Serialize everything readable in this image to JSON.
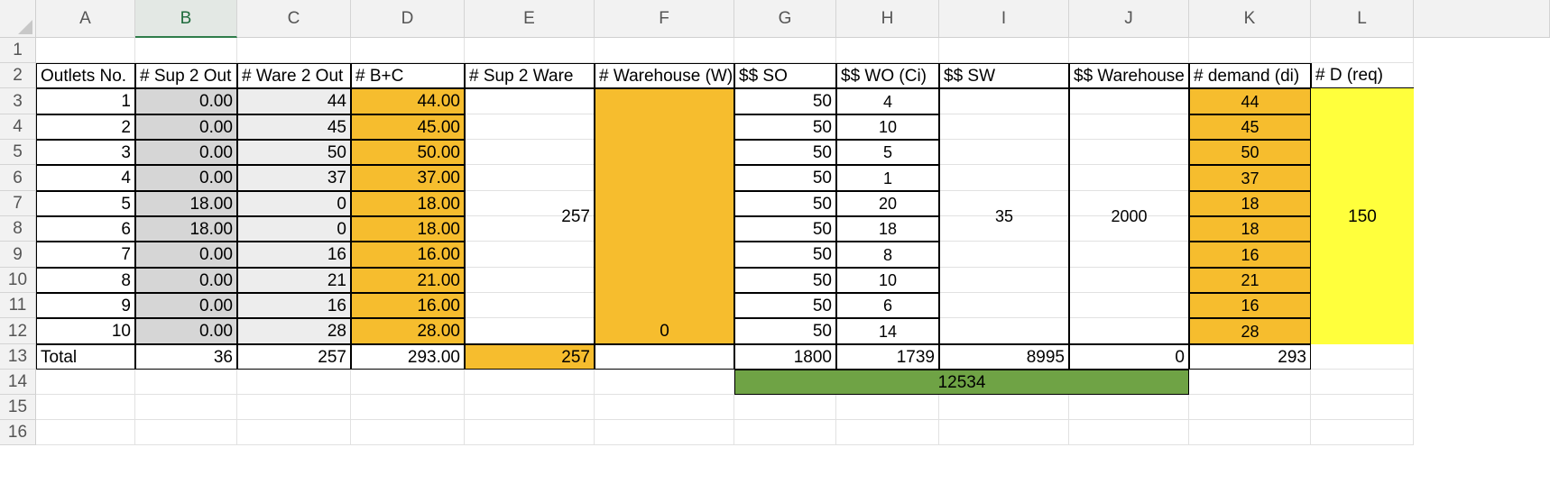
{
  "columns": [
    "A",
    "B",
    "C",
    "D",
    "E",
    "F",
    "G",
    "H",
    "I",
    "J",
    "K",
    "L"
  ],
  "selected_column": "B",
  "rows": [
    "1",
    "2",
    "3",
    "4",
    "5",
    "6",
    "7",
    "8",
    "9",
    "10",
    "11",
    "12",
    "13",
    "14",
    "15",
    "16"
  ],
  "headers": {
    "A": "Outlets No.",
    "B": "# Sup 2 Out",
    "C": "# Ware 2 Out",
    "D": "# B+C",
    "E": "# Sup 2 Ware",
    "F": "# Warehouse (W)",
    "G": "$$ SO",
    "H": "$$ WO (Ci)",
    "I": "$$ SW",
    "J": "$$ Warehouse",
    "K": "# demand (di)",
    "L": "# D (req)"
  },
  "outlets": [
    "1",
    "2",
    "3",
    "4",
    "5",
    "6",
    "7",
    "8",
    "9",
    "10"
  ],
  "sup2out": [
    "0.00",
    "0.00",
    "0.00",
    "0.00",
    "18.00",
    "18.00",
    "0.00",
    "0.00",
    "0.00",
    "0.00"
  ],
  "ware2out": [
    "44",
    "45",
    "50",
    "37",
    "0",
    "0",
    "16",
    "21",
    "16",
    "28"
  ],
  "bplusc": [
    "44.00",
    "45.00",
    "50.00",
    "37.00",
    "18.00",
    "18.00",
    "16.00",
    "21.00",
    "16.00",
    "28.00"
  ],
  "sup2ware": "257",
  "warehouse": "0",
  "so": [
    "50",
    "50",
    "50",
    "50",
    "50",
    "50",
    "50",
    "50",
    "50",
    "50"
  ],
  "wo": [
    "4",
    "10",
    "5",
    "1",
    "20",
    "18",
    "8",
    "10",
    "6",
    "14"
  ],
  "sw": "35",
  "warehouse_cost": "2000",
  "demand": [
    "44",
    "45",
    "50",
    "37",
    "18",
    "18",
    "16",
    "21",
    "16",
    "28"
  ],
  "dreq": "150",
  "totals": {
    "label": "Total",
    "B": "36",
    "C": "257",
    "D": "293.00",
    "E": "257",
    "G": "1800",
    "H": "1739",
    "I": "8995",
    "J": "0",
    "K": "293"
  },
  "grand_total": "12534",
  "colors": {
    "orange": "#f6bd2e",
    "yellow": "#ffff3c",
    "green": "#6fa345",
    "gray": "#d6d6d6",
    "light_gray": "#ededed",
    "selected_header": "#1e6b3c"
  }
}
